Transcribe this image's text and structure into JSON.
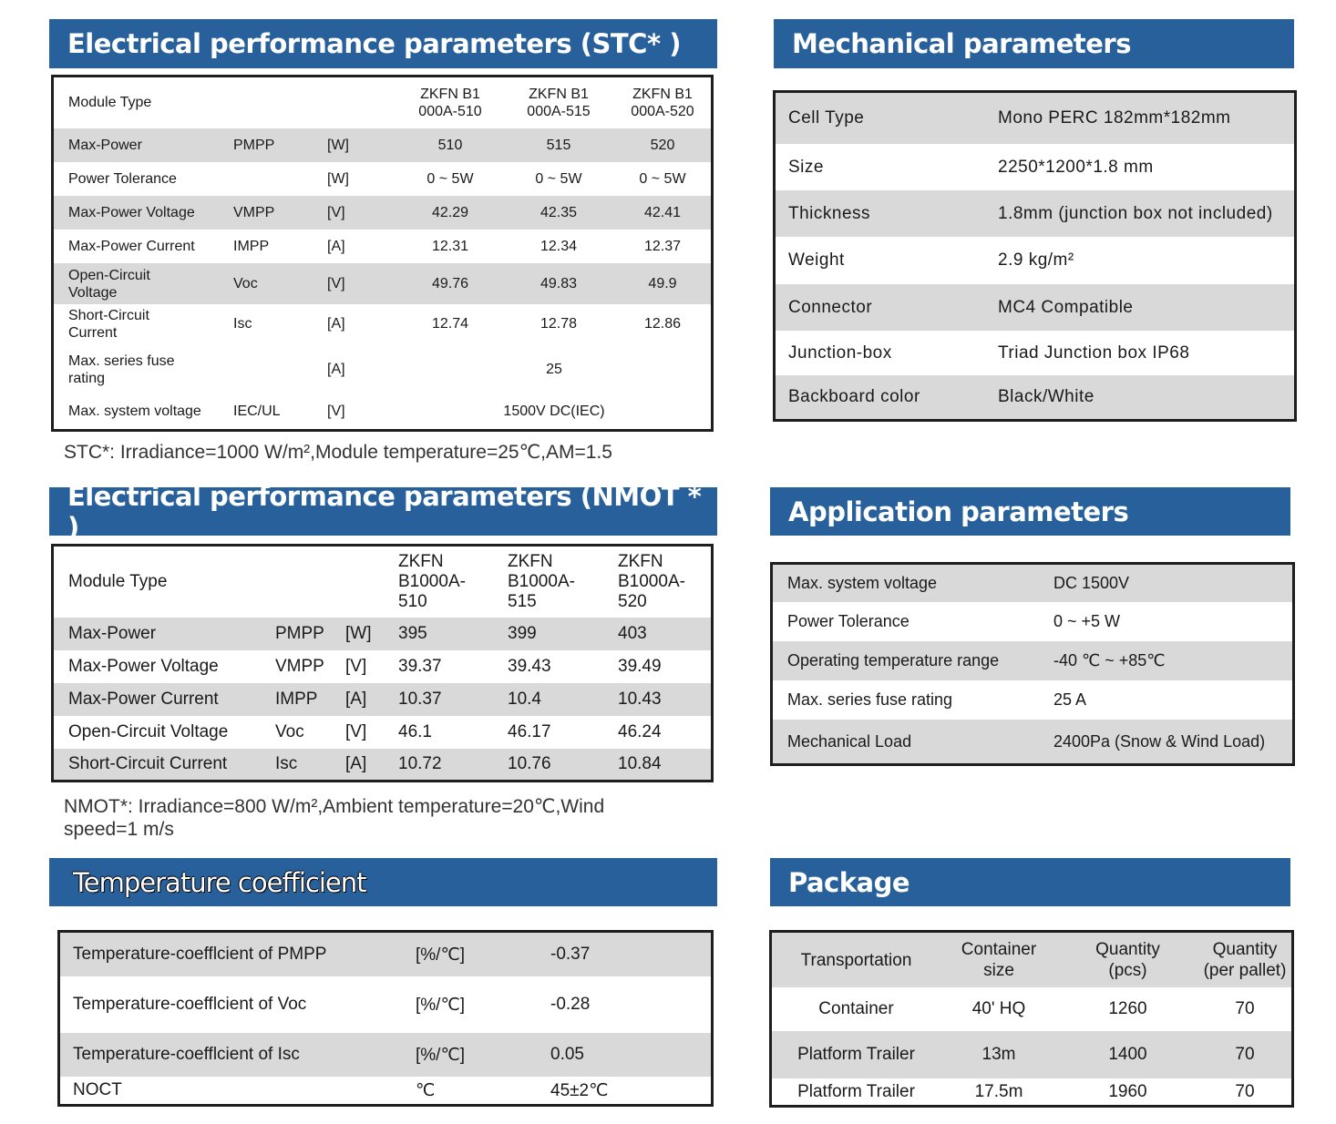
{
  "stc": {
    "title": "Electrical performance parameters (STC* )",
    "module_type_label": "Module Type",
    "models": [
      "ZKFN B1\n000A-510",
      "ZKFN B1\n000A-515",
      "ZKFN B1\n000A-520"
    ],
    "rows": [
      {
        "name": "Max-Power",
        "sym": "PMPP",
        "unit": "[W]",
        "v1": "510",
        "v2": "515",
        "v3": "520"
      },
      {
        "name": "Power Tolerance",
        "sym": "",
        "unit": "[W]",
        "v1": "0 ~ 5W",
        "v2": "0 ~ 5W",
        "v3": "0 ~ 5W"
      },
      {
        "name": "Max-Power Voltage",
        "sym": "VMPP",
        "unit": "[V]",
        "v1": "42.29",
        "v2": "42.35",
        "v3": "42.41"
      },
      {
        "name": "Max-Power Current",
        "sym": "IMPP",
        "unit": "[A]",
        "v1": "12.31",
        "v2": "12.34",
        "v3": "12.37"
      },
      {
        "name": "Open-Circuit\nVoltage",
        "sym": "Voc",
        "unit": "[V]",
        "v1": "49.76",
        "v2": "49.83",
        "v3": "49.9"
      },
      {
        "name": "Short-Circuit\nCurrent",
        "sym": "Isc",
        "unit": "[A]",
        "v1": "12.74",
        "v2": "12.78",
        "v3": "12.86"
      }
    ],
    "fuse": {
      "name": "Max. series fuse\nrating",
      "unit": "[A]",
      "value": "25"
    },
    "sysv": {
      "name": "Max. system voltage",
      "sym": "IEC/UL",
      "unit": "[V]",
      "value": "1500V DC(IEC)"
    },
    "note": "STC*: Irradiance=1000  W/m²,Module temperature=25℃,AM=1.5"
  },
  "nmot": {
    "title": "Electrical performance parameters (NMOT * )",
    "module_type_label": "Module Type",
    "models": [
      "ZKFN\nB1000A-\n510",
      "ZKFN\nB1000A-\n515",
      "ZKFN\nB1000A-\n520"
    ],
    "rows": [
      {
        "name": "Max-Power",
        "sym": "PMPP",
        "unit": "[W]",
        "v1": "395",
        "v2": "399",
        "v3": "403"
      },
      {
        "name": "Max-Power Voltage",
        "sym": "VMPP",
        "unit": "[V]",
        "v1": "39.37",
        "v2": "39.43",
        "v3": "39.49"
      },
      {
        "name": "Max-Power Current",
        "sym": "IMPP",
        "unit": "[A]",
        "v1": "10.37",
        "v2": "10.4",
        "v3": "10.43"
      },
      {
        "name": "Open-Circuit Voltage",
        "sym": "Voc",
        "unit": "[V]",
        "v1": "46.1",
        "v2": "46.17",
        "v3": "46.24"
      },
      {
        "name": "Short-Circuit Current",
        "sym": "Isc",
        "unit": "[A]",
        "v1": "10.72",
        "v2": "10.76",
        "v3": "10.84"
      }
    ],
    "note": "NMOT*: Irradiance=800  W/m²,Ambient temperature=20℃,Wind\nspeed=1  m/s"
  },
  "temp": {
    "title": "Temperature coefficient",
    "rows": [
      {
        "name": "Temperature-coefflcient of PMPP",
        "unit": "[%/℃]",
        "value": "-0.37"
      },
      {
        "name": "Temperature-coefflcient of Voc",
        "unit": "[%/℃]",
        "value": "-0.28"
      },
      {
        "name": "Temperature-coefflcient of Isc",
        "unit": "[%/℃]",
        "value": "0.05"
      },
      {
        "name": "NOCT",
        "unit": "℃",
        "value": "45±2℃"
      }
    ]
  },
  "mech": {
    "title": "Mechanical parameters",
    "rows": [
      {
        "name": "Cell Type",
        "value": "Mono  PERC 182mm*182mm"
      },
      {
        "name": "Size",
        "value": "2250*1200*1.8 mm"
      },
      {
        "name": "Thickness",
        "value": "1.8mm (junction box not included)"
      },
      {
        "name": "Weight",
        "value": "2.9  kg/m²"
      },
      {
        "name": "Connector",
        "value": "MC4 Compatible"
      },
      {
        "name": "Junction-box",
        "value": "Triad Junction box IP68"
      },
      {
        "name": "Backboard  color",
        "value": "Black/White"
      }
    ]
  },
  "app": {
    "title": "Application parameters",
    "rows": [
      {
        "name": "Max. system voltage",
        "value": "DC 1500V"
      },
      {
        "name": "Power Tolerance",
        "value": "0 ~ +5 W"
      },
      {
        "name": "Operating temperature range",
        "value": "-40 ℃ ~ +85℃"
      },
      {
        "name": "Max. series fuse rating",
        "value": "25 A"
      },
      {
        "name": "Mechanical Load",
        "value": "2400Pa (Snow & Wind Load)"
      }
    ]
  },
  "pack": {
    "title": "Package",
    "headers": [
      "Transportation",
      "Container\nsize",
      "Quantity\n(pcs)",
      "Quantity\n(per pallet)"
    ],
    "rows": [
      {
        "t": "Container",
        "s": "40' HQ",
        "q": "1260",
        "p": "70"
      },
      {
        "t": "Platform Trailer",
        "s": "13m",
        "q": "1400",
        "p": "70"
      },
      {
        "t": "Platform Trailer",
        "s": "17.5m",
        "q": "1960",
        "p": "70"
      }
    ]
  }
}
